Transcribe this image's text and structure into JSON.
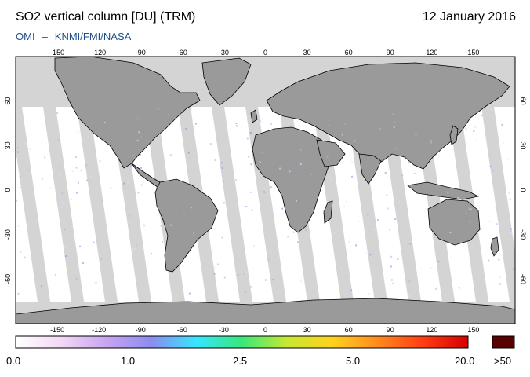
{
  "header": {
    "title": "SO2 vertical column [DU] (TRM)",
    "date": "12 January 2016",
    "credit_left": "OMI",
    "credit_sep": "–",
    "credit_right": "KNMI/FMI/NASA"
  },
  "axes": {
    "lon_labels": [
      "-150",
      "-120",
      "-90",
      "-60",
      "-30",
      "0",
      "30",
      "60",
      "90",
      "120",
      "150"
    ],
    "lat_labels": [
      "60",
      "30",
      "0",
      "-30",
      "-60"
    ]
  },
  "colorbar": {
    "labels": [
      "0.0",
      "1.0",
      "2.5",
      "5.0",
      "20.0"
    ],
    "overflow_label": ">50",
    "colors": [
      "#ffffff",
      "#f3d8f5",
      "#c9a4f0",
      "#8c8cf0",
      "#36e6ff",
      "#38e879",
      "#c8e832",
      "#ffd21c",
      "#ff8a1e",
      "#ff3d14",
      "#d40000"
    ],
    "overflow_color": "#5a0000"
  },
  "map": {
    "land_color": "#9a9a9a",
    "nodata_color": "#d4d4d4",
    "ocean_color": "#ffffff"
  }
}
